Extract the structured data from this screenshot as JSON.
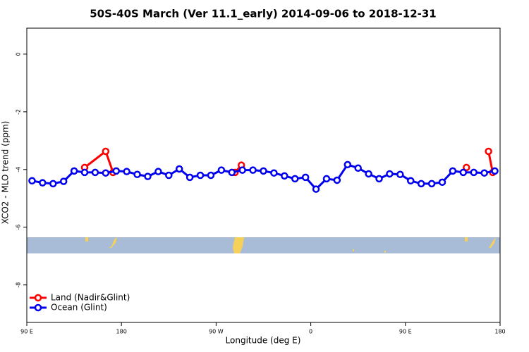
{
  "chart_data": {
    "type": "line",
    "title": "50S-40S March (Ver 11.1_early)   2014-09-06 to 2018-12-31",
    "xlabel": "Longitude (deg E)",
    "ylabel": "XCO2 - MLO trend (ppm)",
    "xlim": [
      90,
      540
    ],
    "xticks": [
      {
        "value": 90,
        "label": "90 E"
      },
      {
        "value": 180,
        "label": "180"
      },
      {
        "value": 270,
        "label": "90 W"
      },
      {
        "value": 360,
        "label": "0"
      },
      {
        "value": 450,
        "label": "90 E"
      },
      {
        "value": 540,
        "label": "180"
      }
    ],
    "ylim": [
      -9.3,
      0.9
    ],
    "yticks": [
      0,
      -2,
      -4,
      -6,
      -8
    ],
    "legend": "bottom-left",
    "series": [
      {
        "name": "Land (Nadir&Glint)",
        "color": "#ff0000",
        "x": [
          145,
          165,
          172,
          230,
          288,
          294,
          400,
          508,
          520,
          529,
          533
        ],
        "values": [
          -3.93,
          -3.37,
          -4.1,
          null,
          -4.1,
          -3.85,
          null,
          -3.93,
          null,
          -3.37,
          -4.1
        ]
      },
      {
        "name": "Ocean (Glint)",
        "color": "#0000ee",
        "x": [
          95,
          105,
          115,
          125,
          135,
          145,
          155,
          165,
          175,
          185,
          195,
          205,
          215,
          225,
          235,
          245,
          255,
          265,
          275,
          285,
          295,
          305,
          315,
          325,
          335,
          345,
          355,
          365,
          375,
          385,
          395,
          405,
          415,
          425,
          435,
          445,
          455,
          465,
          475,
          485,
          495,
          505,
          515,
          525,
          535
        ],
        "values": [
          -4.39,
          -4.46,
          -4.49,
          -4.41,
          -4.05,
          -4.1,
          -4.1,
          -4.12,
          -4.05,
          -4.07,
          -4.17,
          -4.24,
          -4.07,
          -4.2,
          -3.98,
          -4.27,
          -4.2,
          -4.2,
          -4.02,
          -4.1,
          -4.02,
          -4.02,
          -4.05,
          -4.12,
          -4.22,
          -4.32,
          -4.27,
          -4.68,
          -4.32,
          -4.37,
          -3.83,
          -3.95,
          -4.15,
          -4.32,
          -4.15,
          -4.17,
          -4.39,
          -4.49,
          -4.49,
          -4.44,
          -4.05,
          -4.1,
          -4.1,
          -4.12,
          -4.05
        ]
      }
    ]
  }
}
